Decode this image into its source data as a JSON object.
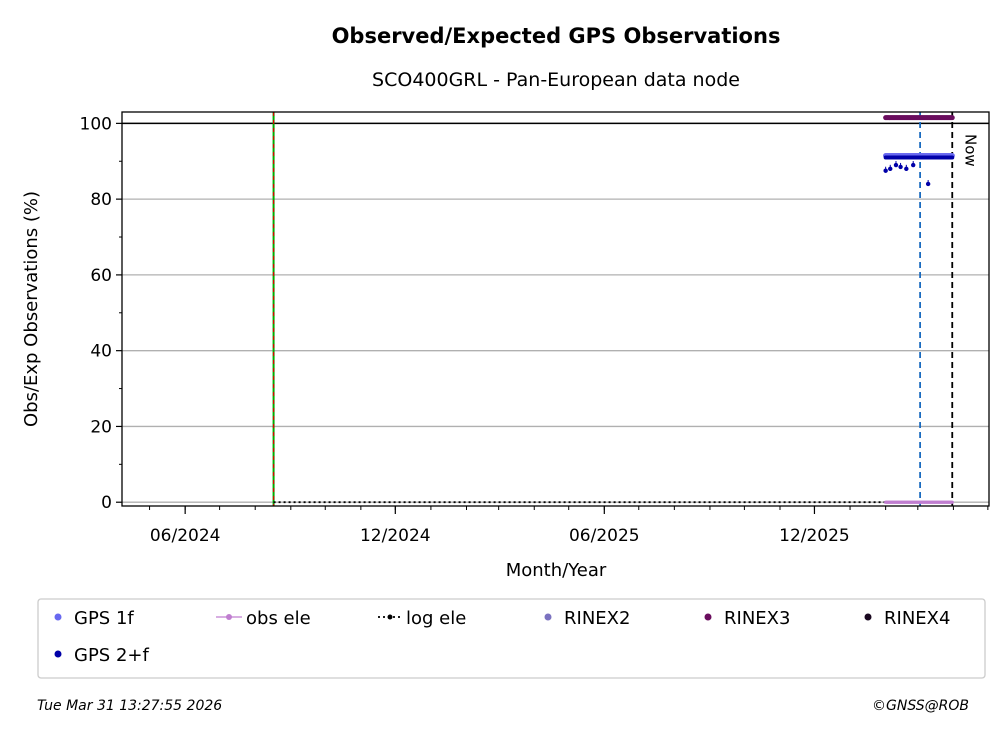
{
  "title": "Observed/Expected GPS Observations",
  "subtitle": "SCO400GRL - Pan-European data node",
  "footer": {
    "timestamp": "Tue Mar 31 13:27:55 2026",
    "credit": "©GNSS@ROB"
  },
  "colors": {
    "gps_1f": "#6868f0",
    "gps_2f": "#0000a8",
    "obs_ele": "#c07ed0",
    "log_ele": "#000000",
    "rinex2": "#7b72c0",
    "rinex3": "#6a0d5e",
    "rinex4": "#1a0820",
    "green_line": "#00aa00",
    "red_line": "#dd0000",
    "blue_line": "#1a6bc0",
    "grid": "#b0b0b0"
  },
  "chart_data": {
    "type": "scatter",
    "title": "Observed/Expected GPS Observations",
    "subtitle": "SCO400GRL - Pan-European data node",
    "xlabel": "Month/Year",
    "ylabel": "Obs/Exp Observations (%)",
    "xlim": [
      "2024-04-07",
      "2026-05-02"
    ],
    "ylim": [
      -1,
      103
    ],
    "x_ticks": [
      "2024-06-01",
      "2024-12-01",
      "2025-06-01",
      "2025-12-01"
    ],
    "x_tick_labels": [
      "06/2024",
      "12/2024",
      "06/2025",
      "12/2025"
    ],
    "y_ticks": [
      0,
      20,
      40,
      60,
      80,
      100
    ],
    "y_tick_labels": [
      "0",
      "20",
      "40",
      "60",
      "80",
      "100"
    ],
    "grid": "horizontal",
    "reference_line_y": 100,
    "vertical_lines": [
      {
        "x": "2024-08-17",
        "style": "green-red dashed"
      },
      {
        "x": "2026-03-03",
        "style": "blue dashed"
      },
      {
        "x": "2026-03-31",
        "style": "black dashed",
        "label": "Now"
      }
    ],
    "log_ele": {
      "x_start": "2024-08-17",
      "x_end": "2026-03-31",
      "y": 0
    },
    "series": [
      {
        "name": "GPS 1f",
        "color_key": "gps_1f",
        "x_start": "2026-02-01",
        "x_end": "2026-03-31",
        "y": 91.5
      },
      {
        "name": "GPS 2+f",
        "color_key": "gps_2f",
        "x_start": "2026-02-01",
        "x_end": "2026-03-31",
        "y": 91.0,
        "dips": [
          {
            "x": "2026-02-01",
            "y": 87.5
          },
          {
            "x": "2026-02-05",
            "y": 88.0
          },
          {
            "x": "2026-02-10",
            "y": 89.0
          },
          {
            "x": "2026-02-14",
            "y": 88.5
          },
          {
            "x": "2026-02-19",
            "y": 88.0
          },
          {
            "x": "2026-02-25",
            "y": 89.0
          },
          {
            "x": "2026-03-10",
            "y": 84.0
          }
        ]
      },
      {
        "name": "obs ele",
        "color_key": "obs_ele",
        "x_start": "2026-02-01",
        "x_end": "2026-03-31",
        "y": 0
      },
      {
        "name": "RINEX3",
        "color_key": "rinex3",
        "x_start": "2026-02-01",
        "x_end": "2026-03-31",
        "y": 101.5
      }
    ],
    "legend": {
      "placement": "bottom",
      "entries": [
        {
          "label": "GPS 1f",
          "marker": "dot",
          "color_key": "gps_1f"
        },
        {
          "label": "obs ele",
          "marker": "line-dot",
          "color_key": "obs_ele"
        },
        {
          "label": "log ele",
          "marker": "dotted-line",
          "color_key": "log_ele"
        },
        {
          "label": "RINEX2",
          "marker": "dot",
          "color_key": "rinex2"
        },
        {
          "label": "RINEX3",
          "marker": "dot",
          "color_key": "rinex3"
        },
        {
          "label": "RINEX4",
          "marker": "dot",
          "color_key": "rinex4"
        },
        {
          "label": "GPS 2+f",
          "marker": "dot",
          "color_key": "gps_2f"
        }
      ]
    }
  }
}
